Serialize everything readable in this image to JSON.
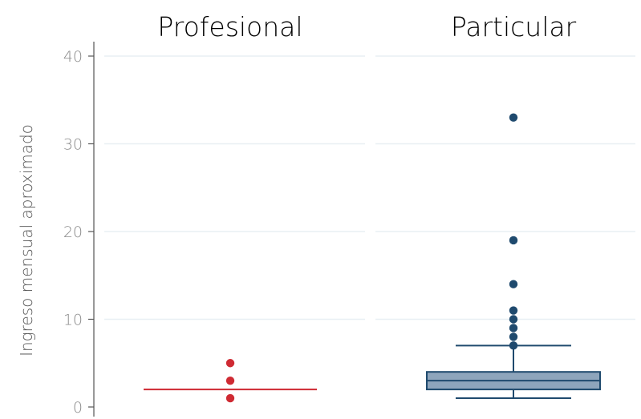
{
  "chart_data": {
    "type": "boxplot",
    "ylabel": "Ingreso mensual aproximado",
    "ylim": [
      0,
      42
    ],
    "yticks": [
      0,
      10,
      20,
      30,
      40
    ],
    "grid": true,
    "panels": [
      {
        "title": "Profesional",
        "color": "#cf2a33",
        "box": {
          "min": 2,
          "q1": 2,
          "median": 2,
          "q3": 2,
          "max": 2
        },
        "outliers": [
          1,
          3,
          5
        ]
      },
      {
        "title": "Particular",
        "color": "#1f4a6e",
        "fill": "#8ea5bc",
        "box": {
          "min": 1,
          "q1": 2,
          "median": 3,
          "q3": 4,
          "max": 7
        },
        "outliers": [
          7,
          8,
          9,
          10,
          11,
          14,
          19,
          33
        ]
      }
    ]
  }
}
